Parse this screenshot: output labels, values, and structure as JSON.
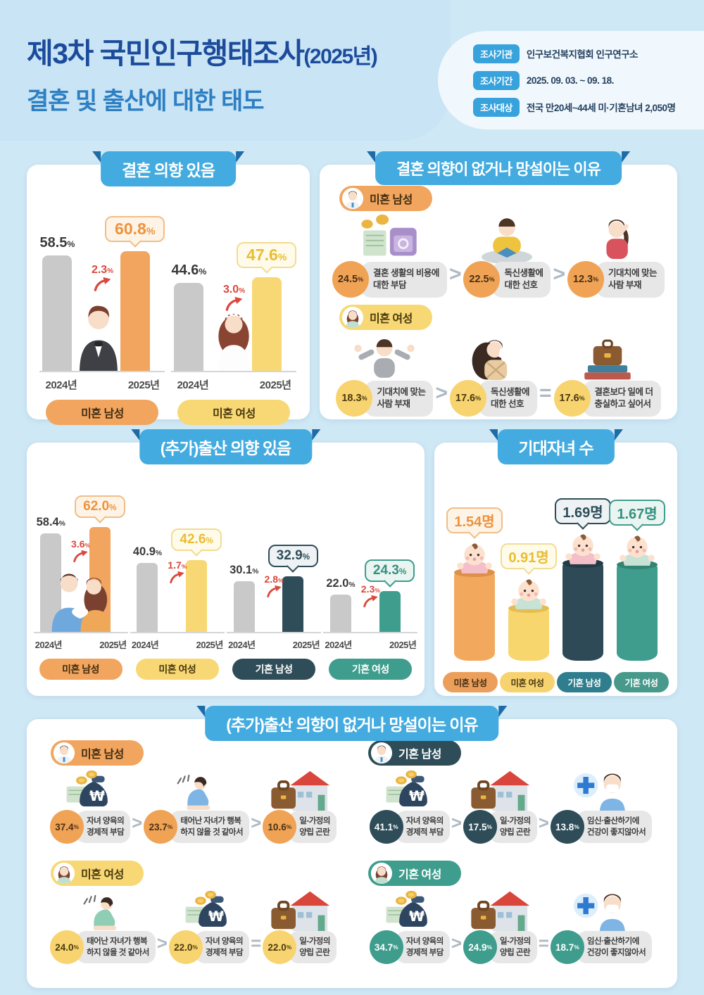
{
  "units": {
    "pct": "%"
  },
  "colors": {
    "background": "#cfe8f6",
    "banner_blue": "#43abdf",
    "banner_fold": "#1d6ba8",
    "title_navy": "#1c4b9b",
    "title_blue": "#2e7fc2",
    "badge_blue": "#37a2dc",
    "orange": "#f1a55e",
    "yellow": "#f8d874",
    "dark_teal": "#2e4d59",
    "teal": "#3f9d8d",
    "gray_bar": "#c9c9c9",
    "delta_red": "#d9483c"
  },
  "header": {
    "title_line1": "제3차 국민인구행태조사",
    "title_suffix": "(2025년)",
    "title_line2": "결혼 및 출산에 대한 태도",
    "meta": [
      {
        "label": "조사기관",
        "value": "인구보건복지협회 인구연구소"
      },
      {
        "label": "조사기간",
        "value": "2025. 09. 03. ~ 09. 18."
      },
      {
        "label": "조사대상",
        "value": "전국 만20세~44세 미·기혼남녀 2,050명"
      }
    ]
  },
  "marriage_intent": {
    "title": "결혼 의향 있음",
    "groups": [
      {
        "label": "미혼 남성",
        "years": [
          "2024년",
          "2025년"
        ],
        "prev": "58.5",
        "curr": "60.8",
        "delta": "2.3"
      },
      {
        "label": "미혼 여성",
        "years": [
          "2024년",
          "2025년"
        ],
        "prev": "44.6",
        "curr": "47.6",
        "delta": "3.0"
      }
    ]
  },
  "marriage_reasons": {
    "title": "결혼 의향이 없거나 망설이는 이유",
    "groups": [
      {
        "label": "미혼 남성",
        "sep1": ">",
        "sep2": ">",
        "items": [
          {
            "pct": "24.5",
            "line1": "결혼 생활의 비용에",
            "line2": "대한 부담",
            "icon": "money-ring-icon"
          },
          {
            "pct": "22.5",
            "line1": "독신생활에",
            "line2": "대한 선호",
            "icon": "reading-man-icon"
          },
          {
            "pct": "12.3",
            "line1": "기대치에 맞는",
            "line2": "사람 부재",
            "icon": "thinking-woman-icon"
          }
        ]
      },
      {
        "label": "미혼 여성",
        "sep1": ">",
        "sep2": "=",
        "items": [
          {
            "pct": "18.3",
            "line1": "기대치에 맞는",
            "line2": "사람 부재",
            "icon": "shrugging-person-icon"
          },
          {
            "pct": "17.6",
            "line1": "독신생활에",
            "line2": "대한 선호",
            "icon": "drinking-woman-icon"
          },
          {
            "pct": "17.6",
            "line1": "결혼보다 일에 더",
            "line2": "충실하고 싶어서",
            "icon": "briefcase-books-icon"
          }
        ]
      }
    ]
  },
  "birth_intent": {
    "title": "(추가)출산 의향 있음",
    "groups": [
      {
        "label": "미혼 남성",
        "years": [
          "2024년",
          "2025년"
        ],
        "prev": "58.4",
        "curr": "62.0",
        "delta": "3.6"
      },
      {
        "label": "미혼 여성",
        "years": [
          "2024년",
          "2025년"
        ],
        "prev": "40.9",
        "curr": "42.6",
        "delta": "1.7"
      },
      {
        "label": "기혼 남성",
        "years": [
          "2024년",
          "2025년"
        ],
        "prev": "30.1",
        "curr": "32.9",
        "delta": "2.8"
      },
      {
        "label": "기혼 여성",
        "years": [
          "2024년",
          "2025년"
        ],
        "prev": "22.0",
        "curr": "24.3",
        "delta": "2.3"
      }
    ]
  },
  "expected_children": {
    "title": "기대자녀 수",
    "groups": [
      {
        "label": "미혼 남성",
        "value": "1.54명",
        "num": 1.54
      },
      {
        "label": "미혼 여성",
        "value": "0.91명",
        "num": 0.91
      },
      {
        "label": "기혼 남성",
        "value": "1.69명",
        "num": 1.69
      },
      {
        "label": "기혼 여성",
        "value": "1.67명",
        "num": 1.67
      }
    ]
  },
  "birth_reasons": {
    "title": "(추가)출산 의향이 없거나 망설이는 이유",
    "groups": [
      {
        "label": "미혼 남성",
        "sep1": ">",
        "sep2": ">",
        "items": [
          {
            "pct": "37.4",
            "line1": "자녀 양육의",
            "line2": "경제적 부담",
            "icon": "money-bag-icon"
          },
          {
            "pct": "23.7",
            "line1": "태어난 자녀가 행복",
            "line2": "하지 않을 것 같아서",
            "icon": "sad-person-icon"
          },
          {
            "pct": "10.6",
            "line1": "일-가정의",
            "line2": "양립 곤란",
            "icon": "briefcase-house-icon"
          }
        ]
      },
      {
        "label": "기혼 남성",
        "sep1": ">",
        "sep2": ">",
        "items": [
          {
            "pct": "41.1",
            "line1": "자녀 양육의",
            "line2": "경제적 부담",
            "icon": "money-bag-icon"
          },
          {
            "pct": "17.5",
            "line1": "일-가정의",
            "line2": "양립 곤란",
            "icon": "briefcase-house-icon"
          },
          {
            "pct": "13.8",
            "line1": "임신·출산하기에",
            "line2": "건강이 좋지않아서",
            "icon": "health-mask-person-icon"
          }
        ]
      },
      {
        "label": "미혼 여성",
        "sep1": ">",
        "sep2": "=",
        "items": [
          {
            "pct": "24.0",
            "line1": "태어난 자녀가 행복",
            "line2": "하지 않을 것 같아서",
            "icon": "sad-person-icon"
          },
          {
            "pct": "22.0",
            "line1": "자녀 양육의",
            "line2": "경제적 부담",
            "icon": "money-bag-icon"
          },
          {
            "pct": "22.0",
            "line1": "일-가정의",
            "line2": "양립 곤란",
            "icon": "briefcase-house-icon"
          }
        ]
      },
      {
        "label": "기혼 여성",
        "sep1": ">",
        "sep2": "=",
        "items": [
          {
            "pct": "34.7",
            "line1": "자녀 양육의",
            "line2": "경제적 부담",
            "icon": "money-bag-icon"
          },
          {
            "pct": "24.9",
            "line1": "일-가정의",
            "line2": "양립 곤란",
            "icon": "briefcase-house-icon"
          },
          {
            "pct": "18.7",
            "line1": "임신·출산하기에",
            "line2": "건강이 좋지않아서",
            "icon": "health-mask-person-icon"
          }
        ]
      }
    ]
  },
  "chart_data": [
    {
      "type": "bar",
      "title": "결혼 의향 있음",
      "categories": [
        "2024년",
        "2025년"
      ],
      "unit": "%",
      "series": [
        {
          "name": "미혼 남성",
          "values": [
            58.5,
            60.8
          ],
          "delta": 2.3
        },
        {
          "name": "미혼 여성",
          "values": [
            44.6,
            47.6
          ],
          "delta": 3.0
        }
      ]
    },
    {
      "type": "bar",
      "title": "(추가)출산 의향 있음",
      "categories": [
        "2024년",
        "2025년"
      ],
      "unit": "%",
      "series": [
        {
          "name": "미혼 남성",
          "values": [
            58.4,
            62.0
          ],
          "delta": 3.6
        },
        {
          "name": "미혼 여성",
          "values": [
            40.9,
            42.6
          ],
          "delta": 1.7
        },
        {
          "name": "기혼 남성",
          "values": [
            30.1,
            32.9
          ],
          "delta": 2.8
        },
        {
          "name": "기혼 여성",
          "values": [
            22.0,
            24.3
          ],
          "delta": 2.3
        }
      ]
    },
    {
      "type": "bar",
      "title": "기대자녀 수",
      "categories": [
        "미혼 남성",
        "미혼 여성",
        "기혼 남성",
        "기혼 여성"
      ],
      "values": [
        1.54,
        0.91,
        1.69,
        1.67
      ],
      "unit": "명"
    },
    {
      "type": "table",
      "title": "결혼 의향이 없거나 망설이는 이유",
      "unit": "%",
      "rows": [
        [
          "미혼 남성",
          "결혼 생활의 비용에 대한 부담",
          24.5
        ],
        [
          "미혼 남성",
          "독신생활에 대한 선호",
          22.5
        ],
        [
          "미혼 남성",
          "기대치에 맞는 사람 부재",
          12.3
        ],
        [
          "미혼 여성",
          "기대치에 맞는 사람 부재",
          18.3
        ],
        [
          "미혼 여성",
          "독신생활에 대한 선호",
          17.6
        ],
        [
          "미혼 여성",
          "결혼보다 일에 더 충실하고 싶어서",
          17.6
        ]
      ]
    },
    {
      "type": "table",
      "title": "(추가)출산 의향이 없거나 망설이는 이유",
      "unit": "%",
      "rows": [
        [
          "미혼 남성",
          "자녀 양육의 경제적 부담",
          37.4
        ],
        [
          "미혼 남성",
          "태어난 자녀가 행복하지 않을 것 같아서",
          23.7
        ],
        [
          "미혼 남성",
          "일-가정의 양립 곤란",
          10.6
        ],
        [
          "기혼 남성",
          "자녀 양육의 경제적 부담",
          41.1
        ],
        [
          "기혼 남성",
          "일-가정의 양립 곤란",
          17.5
        ],
        [
          "기혼 남성",
          "임신·출산하기에 건강이 좋지않아서",
          13.8
        ],
        [
          "미혼 여성",
          "태어난 자녀가 행복하지 않을 것 같아서",
          24.0
        ],
        [
          "미혼 여성",
          "자녀 양육의 경제적 부담",
          22.0
        ],
        [
          "미혼 여성",
          "일-가정의 양립 곤란",
          22.0
        ],
        [
          "기혼 여성",
          "자녀 양육의 경제적 부담",
          34.7
        ],
        [
          "기혼 여성",
          "일-가정의 양립 곤란",
          24.9
        ],
        [
          "기혼 여성",
          "임신·출산하기에 건강이 좋지않아서",
          18.7
        ]
      ]
    }
  ]
}
